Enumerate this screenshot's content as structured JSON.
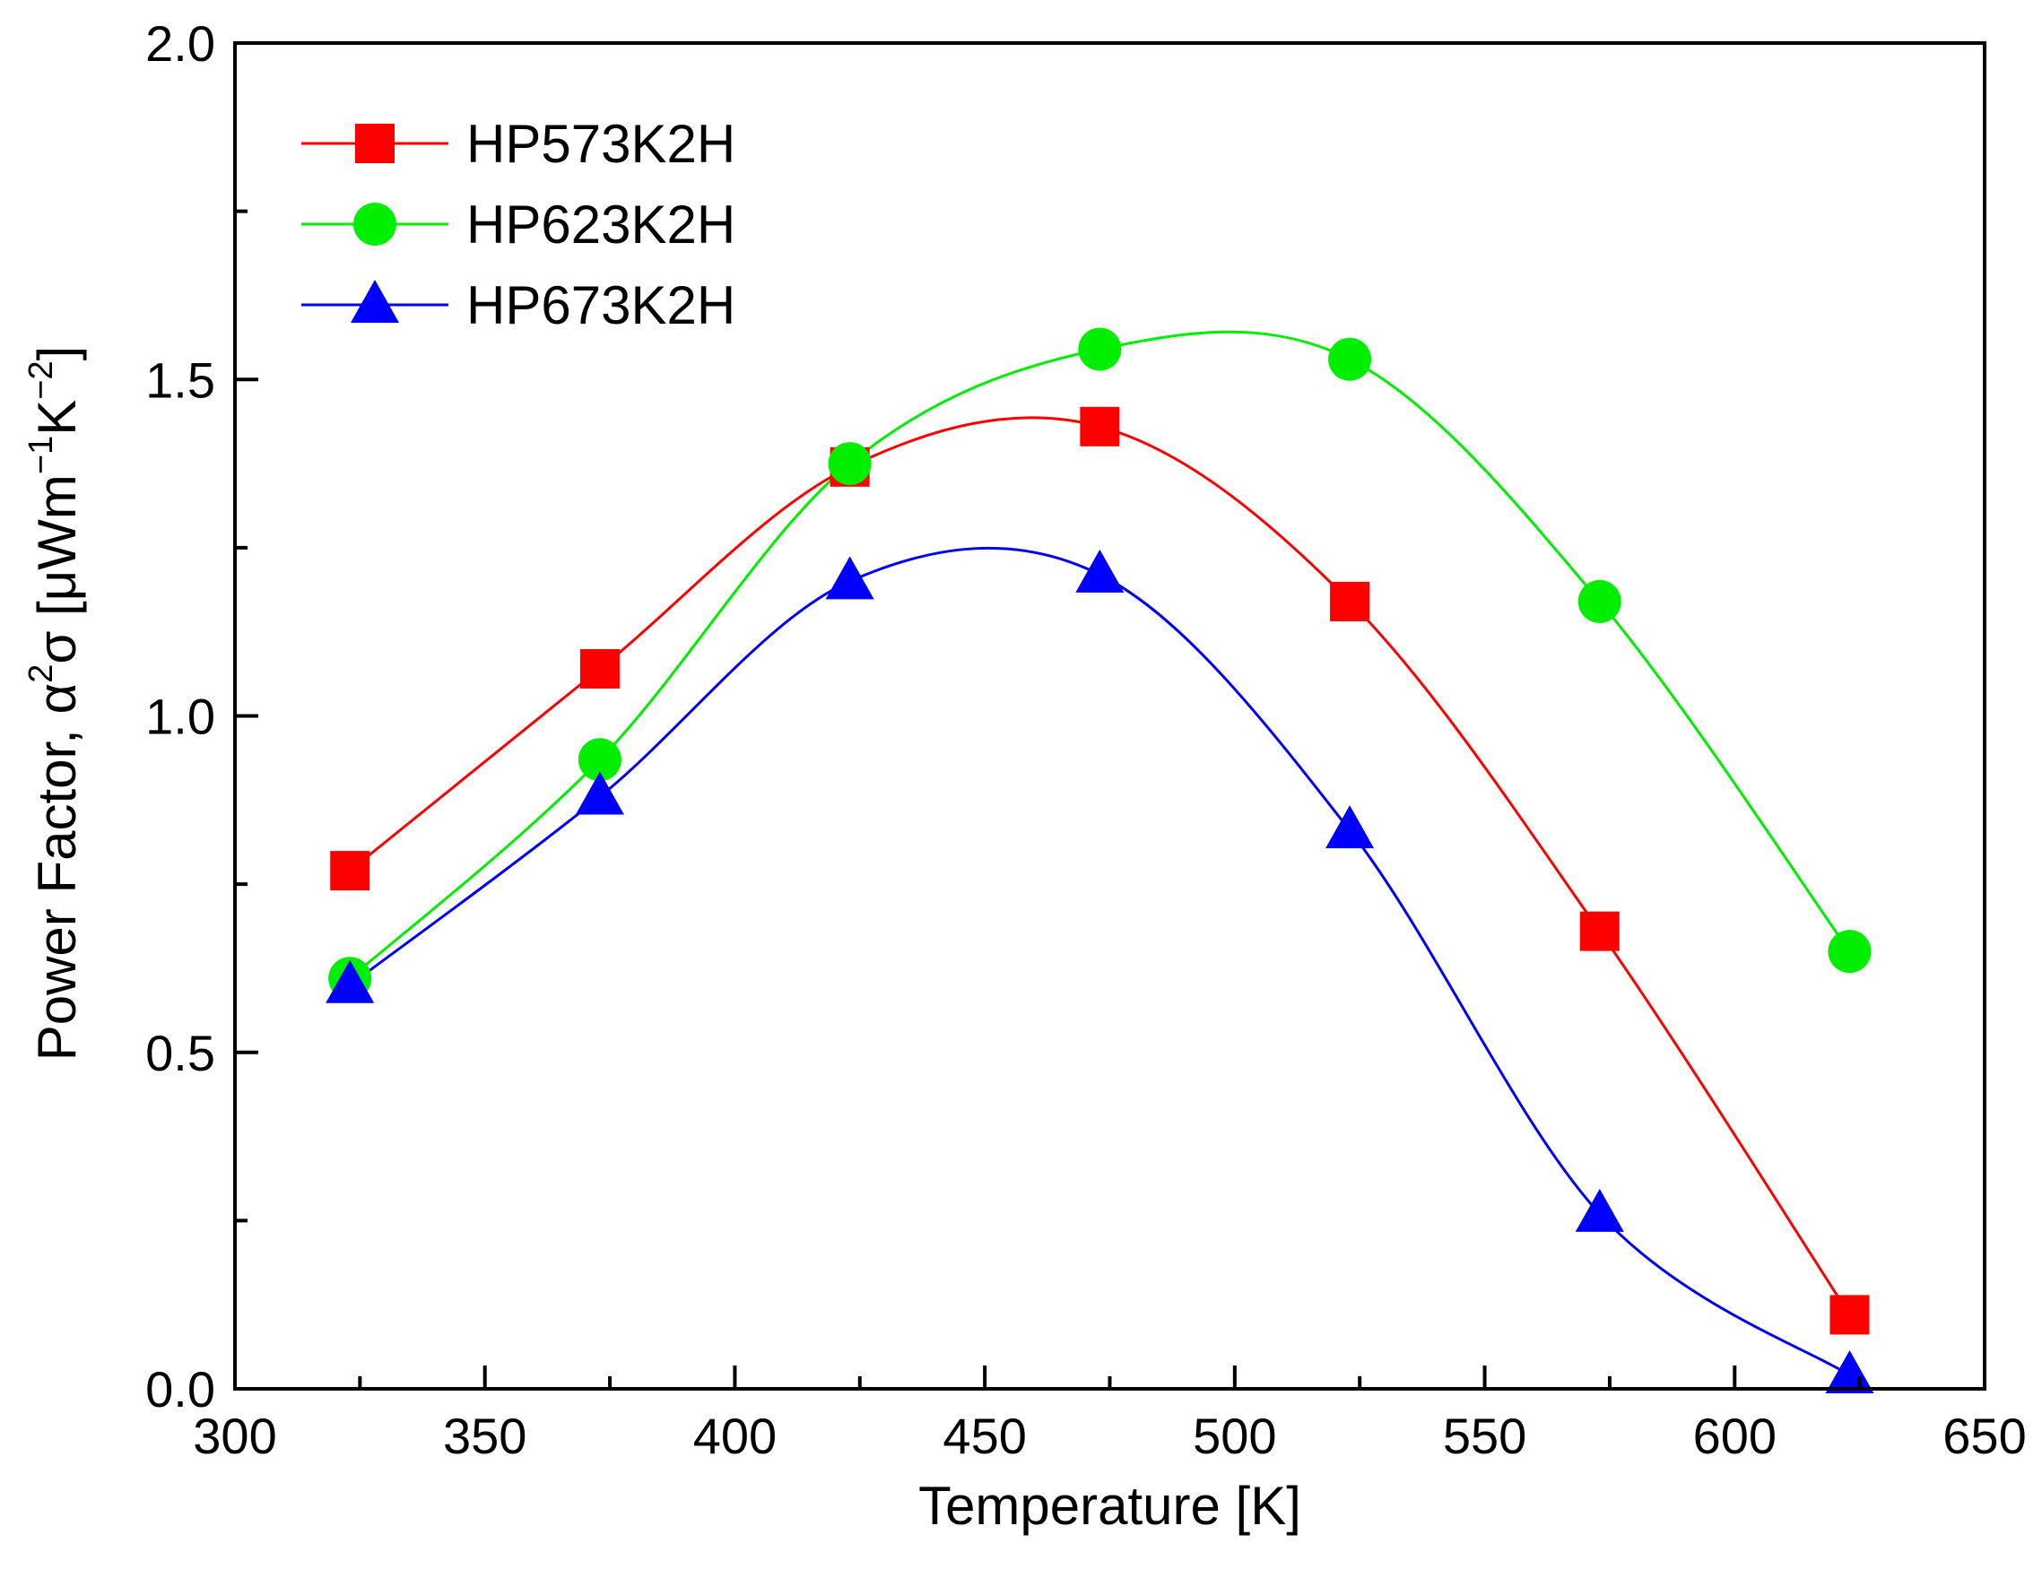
{
  "chart_data": {
    "type": "line",
    "title": "",
    "xlabel": "Temperature [K]",
    "ylabel": {
      "main": "Power Factor, α",
      "sup1": "2",
      "mid": "σ [μWm",
      "sup2": "−1",
      "mid2": "K",
      "sup3": "−2",
      "end": "]"
    },
    "xlim": [
      300,
      650
    ],
    "ylim": [
      0.0,
      2.0
    ],
    "xticks": [
      "300",
      "350",
      "400",
      "450",
      "500",
      "550",
      "600",
      "650"
    ],
    "yticks": [
      "0.0",
      "0.5",
      "1.0",
      "1.5",
      "2.0"
    ],
    "x": [
      323,
      373,
      423,
      473,
      523,
      573,
      623
    ],
    "legend_position": "top-left",
    "series": [
      {
        "name": "HP573K2H",
        "color": "#ff0000",
        "marker": "square",
        "values": [
          0.77,
          1.07,
          1.37,
          1.43,
          1.17,
          0.68,
          0.11
        ]
      },
      {
        "name": "HP623K2H",
        "color": "#00ee00",
        "marker": "circle",
        "values": [
          0.61,
          0.935,
          1.375,
          1.545,
          1.53,
          1.17,
          0.65
        ]
      },
      {
        "name": "HP673K2H",
        "color": "#0000ff",
        "marker": "triangle",
        "values": [
          0.6,
          0.88,
          1.2,
          1.21,
          0.83,
          0.26,
          0.02
        ]
      }
    ]
  }
}
